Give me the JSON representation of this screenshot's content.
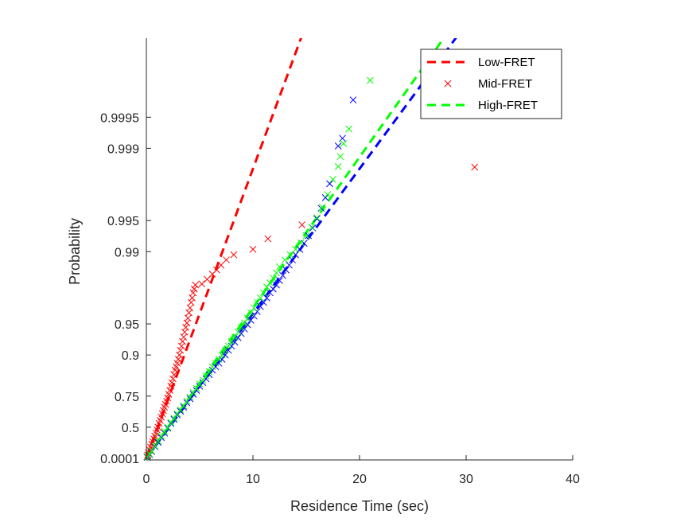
{
  "chart_data": {
    "type": "scatter",
    "title": "",
    "xlabel": "Residence Time (sec)",
    "ylabel": "Probability",
    "xlim": [
      0,
      40
    ],
    "y_scale": "exponential-probability",
    "x_ticks": [
      0,
      10,
      20,
      30,
      40
    ],
    "y_ticks": [
      0.0001,
      0.5,
      0.75,
      0.9,
      0.95,
      0.99,
      0.995,
      0.999,
      0.9995
    ],
    "y_tick_labels": [
      "0.0001",
      "0.5",
      "0.75",
      "0.9",
      "0.95",
      "0.99",
      "0.995",
      "0.999",
      "0.9995"
    ],
    "grid": false,
    "legend_position": "top-right",
    "legend": [
      {
        "label": "Low-FRET",
        "style": "dashed-line",
        "color": "#ff0000"
      },
      {
        "label": "Mid-FRET",
        "style": "x-marker",
        "color": "#ff0000"
      },
      {
        "label": "High-FRET",
        "style": "dashed-line",
        "color": "#00ff00"
      }
    ],
    "fits": [
      {
        "color": "#ff0000",
        "mean_sec": 1.55
      },
      {
        "color": "#0000ff",
        "mean_sec": 3.1
      },
      {
        "color": "#00ff00",
        "mean_sec": 2.98
      }
    ],
    "series": [
      {
        "color": "#ff0000",
        "x": [
          0.05,
          0.12,
          0.2,
          0.3,
          0.4,
          0.5,
          0.6,
          0.7,
          0.8,
          0.9,
          1.0,
          1.1,
          1.2,
          1.3,
          1.4,
          1.5,
          1.6,
          1.7,
          1.8,
          1.9,
          2.0,
          2.1,
          2.2,
          2.3,
          2.4,
          2.5,
          2.6,
          2.7,
          2.8,
          2.9,
          3.0,
          3.1,
          3.2,
          3.3,
          3.4,
          3.5,
          3.6,
          3.7,
          3.8,
          3.9,
          4.0,
          4.1,
          4.2,
          4.3,
          4.4,
          4.5,
          4.6,
          5.2,
          5.7,
          6.2,
          6.6,
          7.0,
          7.5,
          8.2,
          10.0,
          11.4,
          14.6,
          30.8
        ],
        "y": [
          0.03,
          0.07,
          0.12,
          0.17,
          0.22,
          0.27,
          0.31,
          0.35,
          0.39,
          0.43,
          0.47,
          0.5,
          0.54,
          0.57,
          0.6,
          0.63,
          0.655,
          0.68,
          0.7,
          0.72,
          0.74,
          0.76,
          0.78,
          0.8,
          0.815,
          0.83,
          0.845,
          0.86,
          0.87,
          0.88,
          0.89,
          0.9,
          0.91,
          0.918,
          0.926,
          0.933,
          0.94,
          0.946,
          0.951,
          0.956,
          0.961,
          0.965,
          0.969,
          0.972,
          0.975,
          0.977,
          0.979,
          0.9795,
          0.9815,
          0.9835,
          0.985,
          0.9865,
          0.988,
          0.9893,
          0.9905,
          0.9925,
          0.9945,
          0.99848
        ]
      },
      {
        "color": "#0000ff",
        "x": [
          0.1,
          0.3,
          0.5,
          0.8,
          1.1,
          1.4,
          1.7,
          2.0,
          2.3,
          2.6,
          2.9,
          3.2,
          3.5,
          3.8,
          4.1,
          4.4,
          4.7,
          5.0,
          5.3,
          5.6,
          5.9,
          6.2,
          6.5,
          6.8,
          7.1,
          7.4,
          7.7,
          8.0,
          8.3,
          8.6,
          8.9,
          9.2,
          9.5,
          9.8,
          10.1,
          10.4,
          10.7,
          11.0,
          11.3,
          11.6,
          11.9,
          12.2,
          12.5,
          12.8,
          13.1,
          13.4,
          13.7,
          14.0,
          14.4,
          14.8,
          15.2,
          15.6,
          16.0,
          16.4,
          16.8,
          17.2,
          18.0,
          18.4,
          19.4
        ],
        "y": [
          0.02,
          0.08,
          0.14,
          0.23,
          0.3,
          0.37,
          0.43,
          0.49,
          0.54,
          0.58,
          0.62,
          0.65,
          0.68,
          0.71,
          0.735,
          0.76,
          0.78,
          0.8,
          0.815,
          0.83,
          0.845,
          0.86,
          0.87,
          0.88,
          0.89,
          0.9,
          0.91,
          0.918,
          0.925,
          0.932,
          0.938,
          0.944,
          0.949,
          0.954,
          0.958,
          0.962,
          0.966,
          0.969,
          0.972,
          0.975,
          0.977,
          0.979,
          0.981,
          0.983,
          0.985,
          0.9865,
          0.988,
          0.9893,
          0.9905,
          0.9917,
          0.993,
          0.9941,
          0.9952,
          0.9962,
          0.997,
          0.9978,
          0.99905,
          0.9992,
          0.99966
        ]
      },
      {
        "color": "#00ff00",
        "x": [
          0.1,
          0.3,
          0.5,
          0.8,
          1.1,
          1.4,
          1.7,
          2.0,
          2.3,
          2.6,
          2.9,
          3.2,
          3.5,
          3.8,
          4.1,
          4.4,
          4.7,
          5.0,
          5.3,
          5.6,
          5.9,
          6.2,
          6.5,
          6.8,
          7.1,
          7.4,
          7.7,
          8.0,
          8.3,
          8.6,
          8.9,
          9.2,
          9.5,
          9.8,
          10.1,
          10.4,
          10.7,
          11.0,
          11.3,
          11.6,
          11.9,
          12.2,
          12.5,
          13.0,
          13.5,
          14.0,
          14.5,
          15.0,
          15.5,
          16.0,
          16.5,
          17.0,
          17.5,
          18.0,
          18.2,
          18.5,
          19.0,
          21.0
        ],
        "y": [
          0.03,
          0.09,
          0.15,
          0.24,
          0.32,
          0.39,
          0.45,
          0.5,
          0.55,
          0.59,
          0.63,
          0.66,
          0.69,
          0.72,
          0.745,
          0.77,
          0.79,
          0.81,
          0.825,
          0.84,
          0.855,
          0.87,
          0.88,
          0.89,
          0.9,
          0.91,
          0.918,
          0.926,
          0.933,
          0.94,
          0.946,
          0.951,
          0.956,
          0.961,
          0.965,
          0.969,
          0.972,
          0.975,
          0.978,
          0.98,
          0.982,
          0.984,
          0.986,
          0.988,
          0.9893,
          0.9905,
          0.9918,
          0.993,
          0.9942,
          0.9953,
          0.9963,
          0.9972,
          0.998,
          0.9985,
          0.9988,
          0.9991,
          0.99935,
          0.99978
        ]
      }
    ]
  }
}
